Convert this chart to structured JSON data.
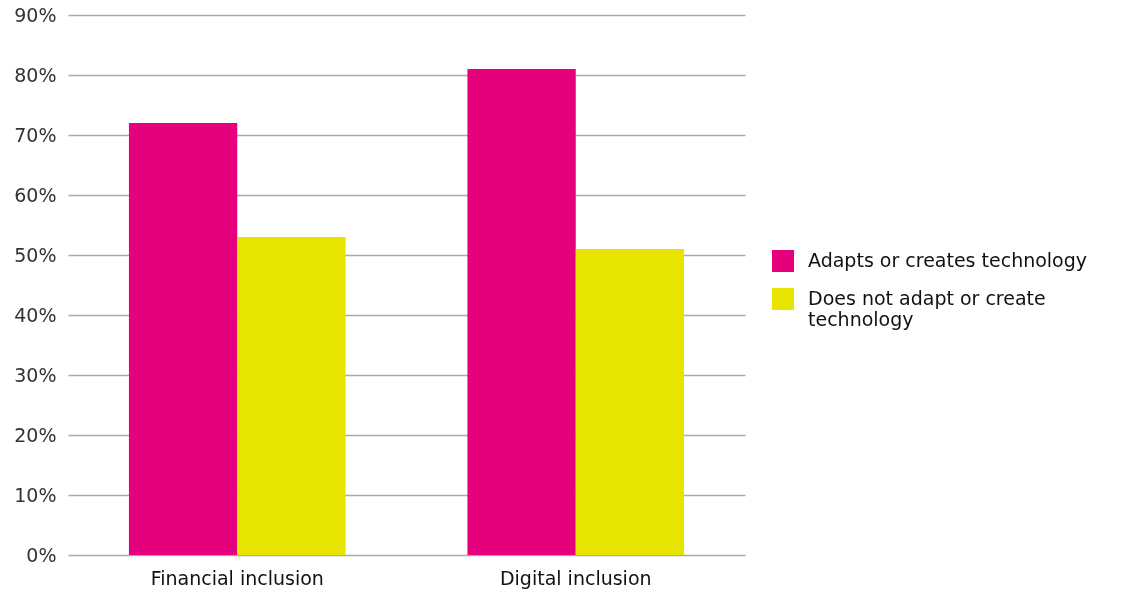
{
  "chart_data": {
    "type": "bar",
    "categories": [
      "Financial inclusion",
      "Digital inclusion"
    ],
    "series": [
      {
        "name": "Adapts or creates technology",
        "color": "#e5007e",
        "values": [
          72,
          81
        ]
      },
      {
        "name": "Does not adapt or create technology",
        "color": "#e6e400",
        "values": [
          53,
          51
        ]
      }
    ],
    "ylim": [
      0,
      90
    ],
    "yticks": [
      {
        "value": 0,
        "label": "0%"
      },
      {
        "value": 10,
        "label": "10%"
      },
      {
        "value": 20,
        "label": "20%"
      },
      {
        "value": 30,
        "label": "30%"
      },
      {
        "value": 40,
        "label": "40%"
      },
      {
        "value": 50,
        "label": "50%"
      },
      {
        "value": 60,
        "label": "60%"
      },
      {
        "value": 70,
        "label": "70%"
      },
      {
        "value": 80,
        "label": "80%"
      },
      {
        "value": 90,
        "label": "90%"
      }
    ],
    "grid": "y",
    "legend": "right"
  }
}
